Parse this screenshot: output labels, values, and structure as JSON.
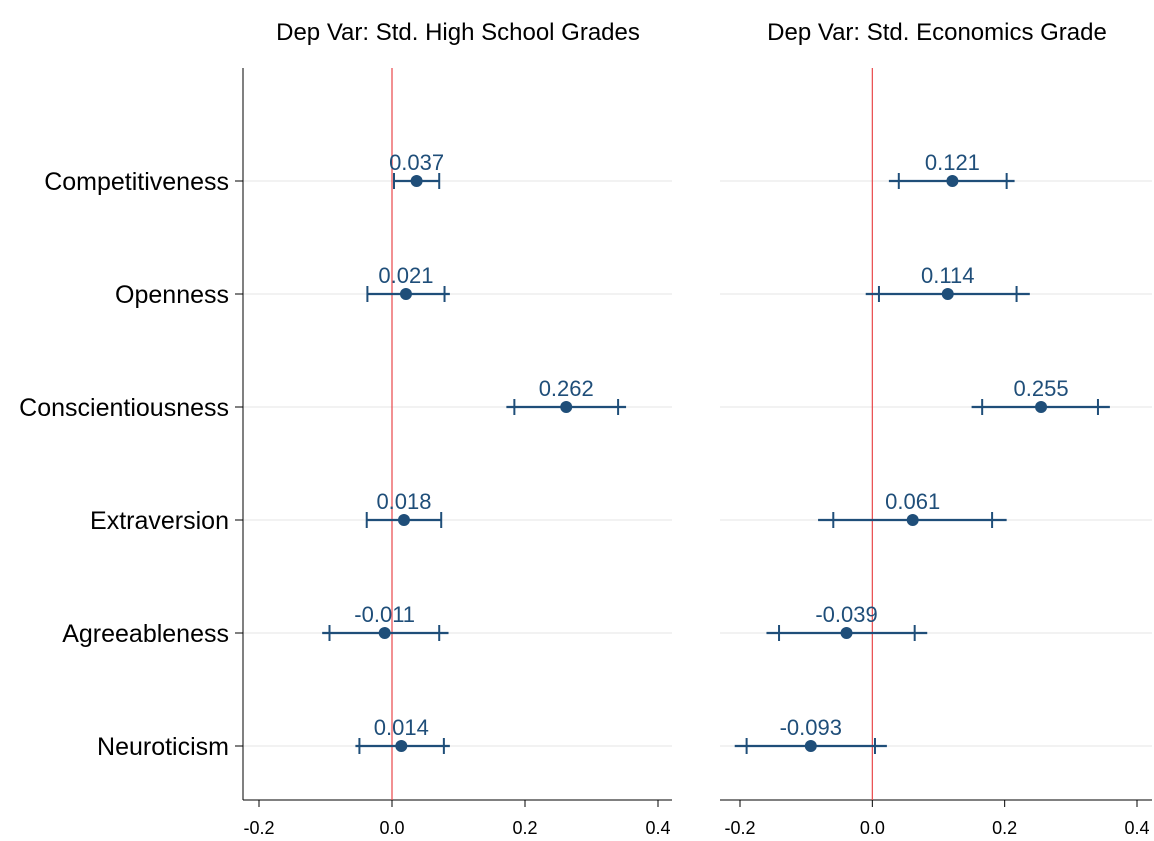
{
  "colors": {
    "estimate": "#1f4e79",
    "reference_line": "#e8474a",
    "gridline": "#e6e6e6",
    "axis": "#000000",
    "label_text": "#000000"
  },
  "chart_data": {
    "type": "coefficient-plot",
    "categories": [
      "Competitiveness",
      "Openness",
      "Conscientiousness",
      "Extraversion",
      "Agreeableness",
      "Neuroticism"
    ],
    "reference_x": 0,
    "grid": "horizontal-only",
    "panels": [
      {
        "title": "Dep Var: Std. High School Grades",
        "xlim": [
          -0.2,
          0.42
        ],
        "xticks": [
          -0.2,
          0.0,
          0.2,
          0.4
        ],
        "xtick_labels": [
          "-0.2",
          "0.0",
          "0.2",
          "0.4"
        ],
        "estimates": [
          0.037,
          0.021,
          0.262,
          0.018,
          -0.011,
          0.014
        ],
        "labels": [
          "0.037",
          "0.021",
          "0.262",
          "0.018",
          "-0.011",
          "0.014"
        ],
        "ci90": [
          [
            0.003,
            0.071
          ],
          [
            -0.037,
            0.079
          ],
          [
            0.184,
            0.34
          ],
          [
            -0.038,
            0.074
          ],
          [
            -0.094,
            0.071
          ],
          [
            -0.049,
            0.078
          ]
        ],
        "ci95": [
          [
            0.003,
            0.071
          ],
          [
            -0.037,
            0.087
          ],
          [
            0.172,
            0.352
          ],
          [
            -0.038,
            0.074
          ],
          [
            -0.105,
            0.085
          ],
          [
            -0.055,
            0.087
          ]
        ]
      },
      {
        "title": "Dep Var: Std. Economics Grade",
        "xlim": [
          -0.21,
          0.42
        ],
        "xticks": [
          -0.2,
          0.0,
          0.2,
          0.4
        ],
        "xtick_labels": [
          "-0.2",
          "0.0",
          "0.2",
          "0.4"
        ],
        "estimates": [
          0.121,
          0.114,
          0.255,
          0.061,
          -0.039,
          -0.093
        ],
        "labels": [
          "0.121",
          "0.114",
          "0.255",
          "0.061",
          "-0.039",
          "-0.093"
        ],
        "ci90": [
          [
            0.04,
            0.203
          ],
          [
            0.01,
            0.218
          ],
          [
            0.166,
            0.341
          ],
          [
            -0.059,
            0.181
          ],
          [
            -0.141,
            0.064
          ],
          [
            -0.19,
            0.004
          ]
        ],
        "ci95": [
          [
            0.025,
            0.215
          ],
          [
            -0.01,
            0.238
          ],
          [
            0.15,
            0.359
          ],
          [
            -0.082,
            0.203
          ],
          [
            -0.16,
            0.083
          ],
          [
            -0.208,
            0.022
          ]
        ]
      }
    ]
  }
}
